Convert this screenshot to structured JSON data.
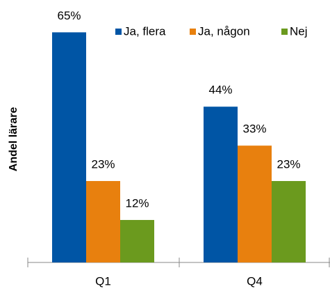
{
  "chart_data": {
    "type": "bar",
    "ylabel": "Andel lärare",
    "categories": [
      "Q1",
      "Q4"
    ],
    "series": [
      {
        "name": "Ja, flera",
        "color": "#0055a5",
        "values": [
          65,
          44
        ],
        "value_labels": [
          "65%",
          "44%"
        ]
      },
      {
        "name": "Ja, någon",
        "color": "#e8800e",
        "values": [
          23,
          33
        ],
        "value_labels": [
          "23%",
          "33%"
        ]
      },
      {
        "name": "Nej",
        "color": "#6b9a1e",
        "values": [
          12,
          23
        ],
        "value_labels": [
          "12%",
          "23%"
        ]
      }
    ],
    "ylim": [
      0,
      70
    ]
  }
}
